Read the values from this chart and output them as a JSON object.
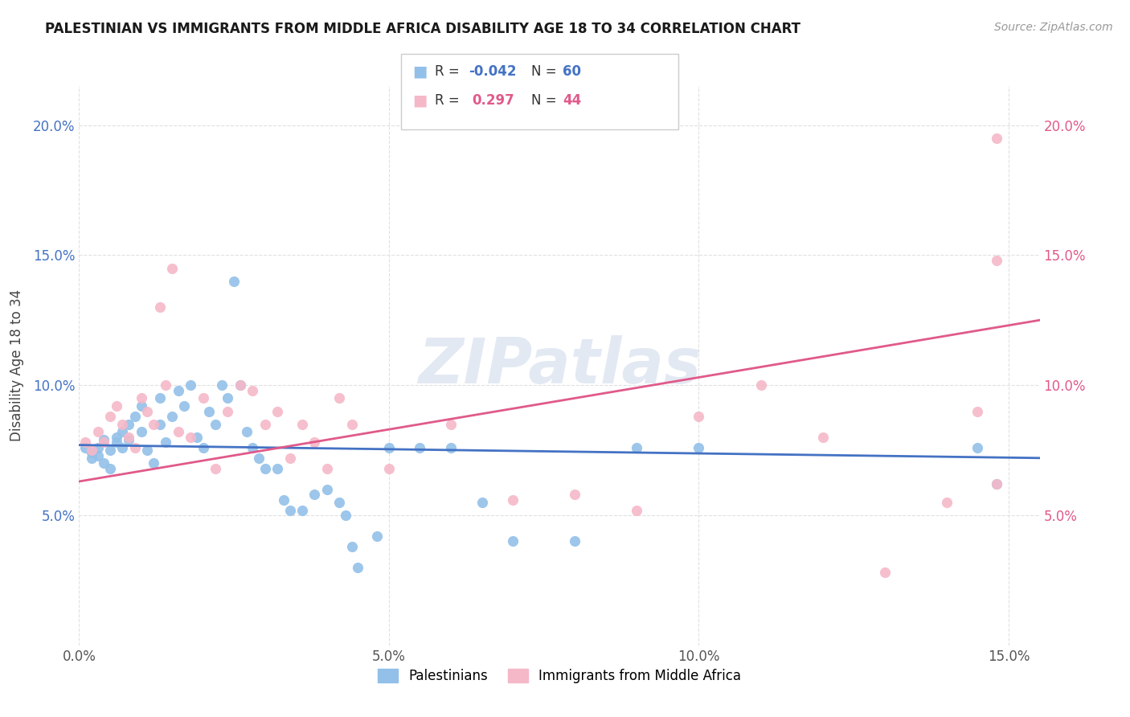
{
  "title": "PALESTINIAN VS IMMIGRANTS FROM MIDDLE AFRICA DISABILITY AGE 18 TO 34 CORRELATION CHART",
  "source": "Source: ZipAtlas.com",
  "ylabel": "Disability Age 18 to 34",
  "xlim": [
    0.0,
    0.155
  ],
  "ylim": [
    0.0,
    0.215
  ],
  "xtick_vals": [
    0.0,
    0.05,
    0.1,
    0.15
  ],
  "ytick_vals": [
    0.05,
    0.1,
    0.15,
    0.2
  ],
  "blue_scatter_color": "#92c0e8",
  "pink_scatter_color": "#f5b8c8",
  "blue_line_color": "#4472c4",
  "pink_line_color": "#e05a8a",
  "r_blue": "-0.042",
  "n_blue": "60",
  "r_pink": "0.297",
  "n_pink": "44",
  "legend_label_blue": "Palestinians",
  "legend_label_pink": "Immigrants from Middle Africa",
  "watermark": "ZIPatlas",
  "blue_x": [
    0.001,
    0.002,
    0.002,
    0.003,
    0.003,
    0.004,
    0.004,
    0.005,
    0.005,
    0.006,
    0.006,
    0.007,
    0.007,
    0.008,
    0.008,
    0.009,
    0.01,
    0.01,
    0.011,
    0.012,
    0.013,
    0.013,
    0.014,
    0.015,
    0.016,
    0.017,
    0.018,
    0.019,
    0.02,
    0.021,
    0.022,
    0.023,
    0.024,
    0.025,
    0.026,
    0.027,
    0.028,
    0.029,
    0.03,
    0.032,
    0.033,
    0.034,
    0.036,
    0.038,
    0.04,
    0.042,
    0.043,
    0.044,
    0.045,
    0.048,
    0.05,
    0.055,
    0.06,
    0.065,
    0.07,
    0.08,
    0.09,
    0.1,
    0.145,
    0.148
  ],
  "blue_y": [
    0.076,
    0.074,
    0.072,
    0.076,
    0.073,
    0.07,
    0.079,
    0.075,
    0.068,
    0.08,
    0.078,
    0.082,
    0.076,
    0.085,
    0.079,
    0.088,
    0.082,
    0.092,
    0.075,
    0.07,
    0.095,
    0.085,
    0.078,
    0.088,
    0.098,
    0.092,
    0.1,
    0.08,
    0.076,
    0.09,
    0.085,
    0.1,
    0.095,
    0.14,
    0.1,
    0.082,
    0.076,
    0.072,
    0.068,
    0.068,
    0.056,
    0.052,
    0.052,
    0.058,
    0.06,
    0.055,
    0.05,
    0.038,
    0.03,
    0.042,
    0.076,
    0.076,
    0.076,
    0.055,
    0.04,
    0.04,
    0.076,
    0.076,
    0.076,
    0.062
  ],
  "pink_x": [
    0.001,
    0.002,
    0.003,
    0.004,
    0.005,
    0.006,
    0.007,
    0.008,
    0.009,
    0.01,
    0.011,
    0.012,
    0.013,
    0.014,
    0.015,
    0.016,
    0.018,
    0.02,
    0.022,
    0.024,
    0.026,
    0.028,
    0.03,
    0.032,
    0.034,
    0.036,
    0.038,
    0.04,
    0.042,
    0.044,
    0.05,
    0.06,
    0.07,
    0.08,
    0.09,
    0.1,
    0.11,
    0.12,
    0.13,
    0.14,
    0.145,
    0.148,
    0.148,
    0.148
  ],
  "pink_y": [
    0.078,
    0.075,
    0.082,
    0.078,
    0.088,
    0.092,
    0.085,
    0.08,
    0.076,
    0.095,
    0.09,
    0.085,
    0.13,
    0.1,
    0.145,
    0.082,
    0.08,
    0.095,
    0.068,
    0.09,
    0.1,
    0.098,
    0.085,
    0.09,
    0.072,
    0.085,
    0.078,
    0.068,
    0.095,
    0.085,
    0.068,
    0.085,
    0.056,
    0.058,
    0.052,
    0.088,
    0.1,
    0.08,
    0.028,
    0.055,
    0.09,
    0.062,
    0.148,
    0.195
  ],
  "blue_line_x": [
    0.0,
    0.155
  ],
  "blue_line_y": [
    0.077,
    0.072
  ],
  "pink_line_x": [
    0.0,
    0.155
  ],
  "pink_line_y": [
    0.063,
    0.125
  ]
}
